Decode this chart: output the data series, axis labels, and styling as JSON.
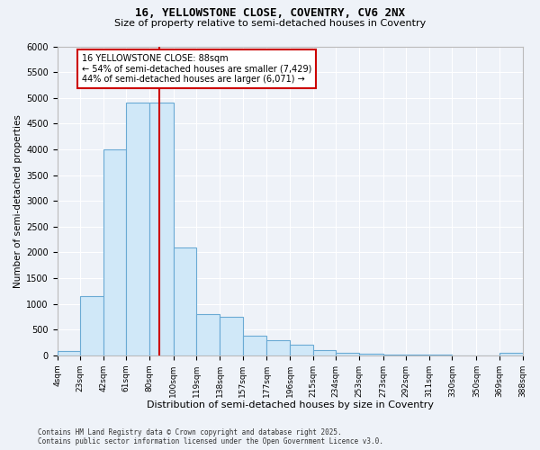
{
  "title1": "16, YELLOWSTONE CLOSE, COVENTRY, CV6 2NX",
  "title2": "Size of property relative to semi-detached houses in Coventry",
  "xlabel": "Distribution of semi-detached houses by size in Coventry",
  "ylabel": "Number of semi-detached properties",
  "property_label": "16 YELLOWSTONE CLOSE: 88sqm",
  "smaller_pct": 54,
  "smaller_count": 7429,
  "larger_pct": 44,
  "larger_count": 6071,
  "bins": [
    4,
    23,
    42,
    61,
    80,
    100,
    119,
    138,
    157,
    177,
    196,
    215,
    234,
    253,
    273,
    292,
    311,
    330,
    350,
    369,
    388
  ],
  "bin_labels": [
    "4sqm",
    "23sqm",
    "42sqm",
    "61sqm",
    "80sqm",
    "100sqm",
    "119sqm",
    "138sqm",
    "157sqm",
    "177sqm",
    "196sqm",
    "215sqm",
    "234sqm",
    "253sqm",
    "273sqm",
    "292sqm",
    "311sqm",
    "330sqm",
    "350sqm",
    "369sqm",
    "388sqm"
  ],
  "counts": [
    75,
    1150,
    4000,
    4900,
    4900,
    2100,
    800,
    750,
    380,
    300,
    200,
    100,
    50,
    30,
    10,
    8,
    5,
    3,
    2,
    50
  ],
  "bar_color": "#d0e8f8",
  "bar_edge_color": "#6aaad4",
  "vline_color": "#cc0000",
  "vline_x": 88,
  "annotation_box_color": "#cc0000",
  "background_color": "#eef2f8",
  "grid_color": "#ffffff",
  "footer": "Contains HM Land Registry data © Crown copyright and database right 2025.\nContains public sector information licensed under the Open Government Licence v3.0.",
  "ylim": [
    0,
    6000
  ],
  "yticks": [
    0,
    500,
    1000,
    1500,
    2000,
    2500,
    3000,
    3500,
    4000,
    4500,
    5000,
    5500,
    6000
  ]
}
